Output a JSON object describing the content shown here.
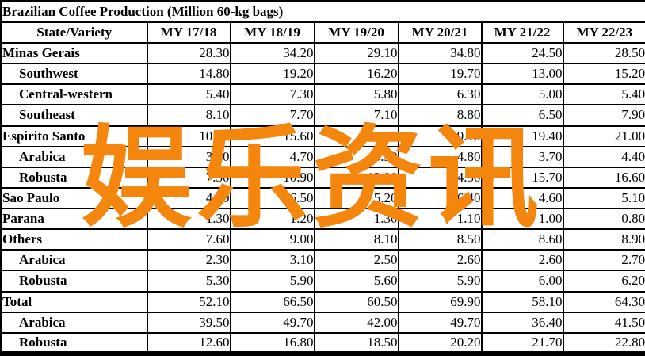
{
  "title": "Brazilian Coffee Production (Million 60-kg bags)",
  "watermark": {
    "text": "娱乐资讯",
    "color": "#F5860D"
  },
  "table": {
    "columns": [
      "State/Variety",
      "MY 17/18",
      "MY 18/19",
      "MY 19/20",
      "MY 20/21",
      "MY 21/22",
      "MY 22/23"
    ],
    "rows": [
      {
        "label": "Minas Gerais",
        "indent": false,
        "values": [
          "28.30",
          "34.20",
          "29.10",
          "34.80",
          "24.50",
          "28.50"
        ]
      },
      {
        "label": "Southwest",
        "indent": true,
        "values": [
          "14.80",
          "19.20",
          "16.20",
          "19.70",
          "13.00",
          "15.20"
        ]
      },
      {
        "label": "Central-western",
        "indent": true,
        "values": [
          "5.40",
          "7.30",
          "5.80",
          "6.30",
          "5.00",
          "5.40"
        ]
      },
      {
        "label": "Southeast",
        "indent": true,
        "values": [
          "8.10",
          "7.70",
          "7.10",
          "8.80",
          "6.50",
          "7.90"
        ]
      },
      {
        "label": "Espirito Santo",
        "indent": false,
        "values": [
          "10.60",
          "15.60",
          "16.80",
          "19.10",
          "19.40",
          "21.00"
        ]
      },
      {
        "label": "Arabica",
        "indent": true,
        "values": [
          "3.30",
          "4.70",
          "3.90",
          "4.80",
          "3.70",
          "4.40"
        ]
      },
      {
        "label": "Robusta",
        "indent": true,
        "values": [
          "7.30",
          "10.90",
          "12.90",
          "14.30",
          "15.70",
          "16.60"
        ]
      },
      {
        "label": "Sao Paulo",
        "indent": false,
        "values": [
          "4.30",
          "6.50",
          "5.20",
          "6.40",
          "4.60",
          "5.10"
        ]
      },
      {
        "label": "Parana",
        "indent": false,
        "values": [
          "1.30",
          "1.20",
          "1.30",
          "1.10",
          "1.00",
          "0.80"
        ]
      },
      {
        "label": "Others",
        "indent": false,
        "values": [
          "7.60",
          "9.00",
          "8.10",
          "8.50",
          "8.60",
          "8.90"
        ]
      },
      {
        "label": "Arabica",
        "indent": true,
        "values": [
          "2.30",
          "3.10",
          "2.50",
          "2.60",
          "2.60",
          "2.70"
        ]
      },
      {
        "label": "Robusta",
        "indent": true,
        "values": [
          "5.30",
          "5.90",
          "5.60",
          "5.90",
          "6.00",
          "6.20"
        ]
      },
      {
        "label": "Total",
        "indent": false,
        "values": [
          "52.10",
          "66.50",
          "60.50",
          "69.90",
          "58.10",
          "64.30"
        ]
      },
      {
        "label": "Arabica",
        "indent": true,
        "values": [
          "39.50",
          "49.70",
          "42.00",
          "49.70",
          "36.40",
          "41.50"
        ]
      },
      {
        "label": "Robusta",
        "indent": true,
        "values": [
          "12.60",
          "16.80",
          "18.50",
          "20.20",
          "21.70",
          "22.80"
        ]
      }
    ]
  }
}
